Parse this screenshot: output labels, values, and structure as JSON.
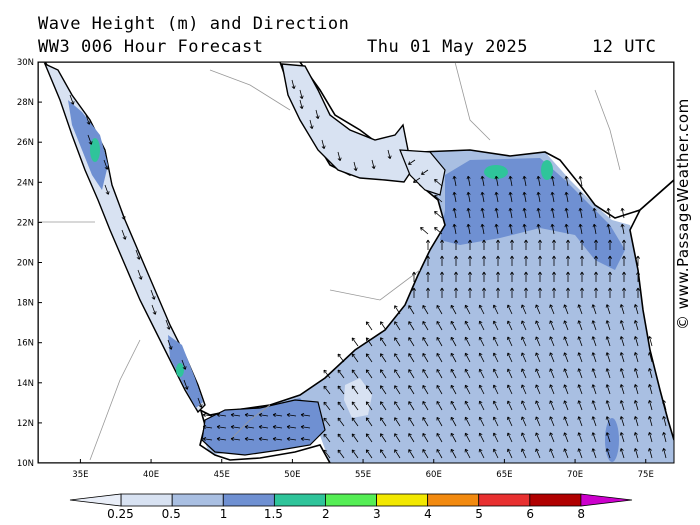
{
  "header": {
    "title": "Wave Height (m) and Direction",
    "subtitle": "WW3 006 Hour Forecast",
    "date": "Thu 01 May 2025",
    "time": "12 UTC"
  },
  "credit": "© www.PassageWeather.com",
  "map": {
    "lat_labels": [
      "30N",
      "28N",
      "26N",
      "24N",
      "22N",
      "20N",
      "18N",
      "16N",
      "14N",
      "12N",
      "10N"
    ],
    "lon_labels": [
      "35E",
      "40E",
      "45E",
      "50E",
      "55E",
      "60E",
      "65E",
      "70E",
      "75E"
    ],
    "lat_range": [
      10,
      30
    ],
    "lon_range": [
      32,
      77
    ],
    "dominant_direction": "north-to-northwest over Arabian Sea; south-southeast in Red Sea"
  },
  "colorbar": {
    "labels": [
      "0.25",
      "0.5",
      "1",
      "1.5",
      "2",
      "3",
      "4",
      "5",
      "6",
      "8"
    ],
    "colors": [
      "#e9eef8",
      "#d8e2f2",
      "#a9bfe2",
      "#6f90d2",
      "#2fc49a",
      "#55ee55",
      "#f2e800",
      "#f28a10",
      "#e83030",
      "#b00000",
      "#cc00cc"
    ]
  }
}
